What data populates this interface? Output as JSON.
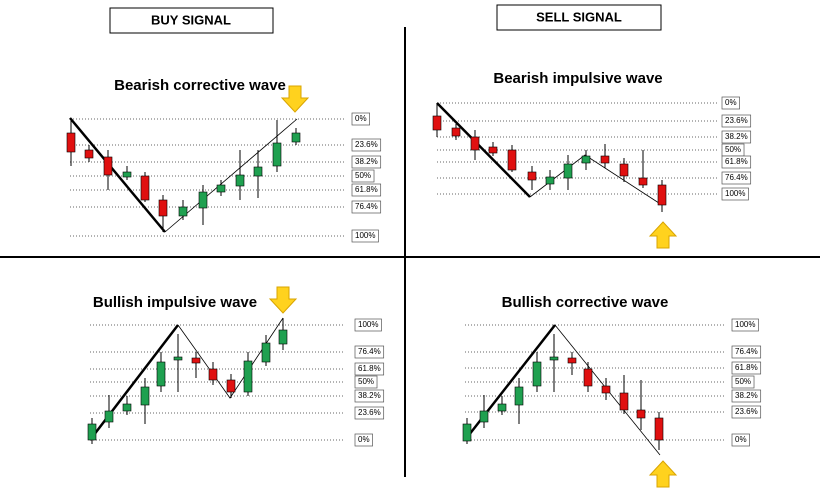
{
  "header": {
    "buy": "BUY SIGNAL",
    "sell": "SELL SIGNAL"
  },
  "panels": [
    {
      "title": "Bearish corrective wave",
      "levels": [
        "0%",
        "23.6%",
        "38.2%",
        "50%",
        "61.8%",
        "76.4%",
        "100%"
      ]
    },
    {
      "title": "Bearish impulsive wave",
      "levels": [
        "0%",
        "23.6%",
        "38.2%",
        "50%",
        "61.8%",
        "76.4%",
        "100%"
      ]
    },
    {
      "title": "Bullish impulsive wave",
      "levels": [
        "100%",
        "76.4%",
        "61.8%",
        "50%",
        "38.2%",
        "23.6%",
        "0%"
      ]
    },
    {
      "title": "Bullish corrective wave",
      "levels": [
        "100%",
        "76.4%",
        "61.8%",
        "50%",
        "38.2%",
        "23.6%",
        "0%"
      ]
    }
  ]
}
